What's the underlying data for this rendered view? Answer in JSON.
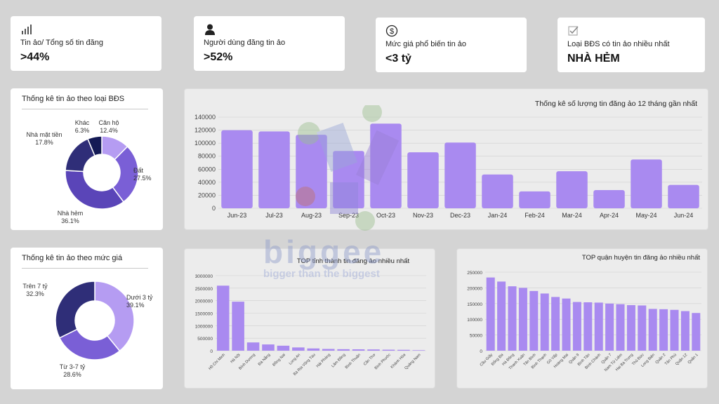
{
  "kpis": [
    {
      "label": "Tin ảo/ Tổng số tin đăng",
      "value": ">44%",
      "icon": "bar-chart-icon"
    },
    {
      "label": "Người dùng đăng tin ảo",
      "value": ">52%",
      "icon": "user-icon"
    },
    {
      "label": "Mức giá phổ biến tin ảo",
      "value": "<3 tỷ",
      "icon": "dollar-icon"
    },
    {
      "label": "Loại BĐS có tin ảo nhiều nhất",
      "value": "NHÀ HẺM",
      "icon": "checkbox-icon"
    }
  ],
  "colors": {
    "bar": "#a98af0",
    "donut": [
      "#b59cf2",
      "#7a5fd6",
      "#5a45b8",
      "#2f2e78",
      "#141a55"
    ]
  },
  "watermark": {
    "brand": "biggee",
    "tagline": "bigger than the biggest"
  },
  "chart_data": [
    {
      "type": "pie",
      "title": "Thống kê tin ảo theo loại BĐS",
      "labels": [
        "Căn hộ",
        "Đất",
        "Nhà hẻm",
        "Nhà mặt tiền",
        "Khác"
      ],
      "values": [
        12.4,
        27.5,
        36.1,
        17.8,
        6.3
      ],
      "value_labels": [
        "12.4%",
        "27.5%",
        "36.1%",
        "17.8%",
        "6.3%"
      ]
    },
    {
      "type": "pie",
      "title": "Thống kê tin ảo theo mức giá",
      "labels": [
        "Dưới 3 tỷ",
        "Từ 3-7 tỷ",
        "Trên 7 tỷ"
      ],
      "values": [
        39.1,
        28.6,
        32.3
      ],
      "value_labels": [
        "39.1%",
        "28.6%",
        "32.3%"
      ]
    },
    {
      "type": "bar",
      "title": "Thống kê số lượng tin đăng ảo 12 tháng gần nhất",
      "categories": [
        "Jun-23",
        "Jul-23",
        "Aug-23",
        "Sep-23",
        "Oct-23",
        "Nov-23",
        "Dec-23",
        "Jan-24",
        "Feb-24",
        "Mar-24",
        "Apr-24",
        "May-24",
        "Jun-24"
      ],
      "values": [
        120000,
        118000,
        113000,
        88000,
        130000,
        86000,
        101000,
        52000,
        26000,
        57000,
        28000,
        75000,
        36000
      ],
      "ylim": [
        0,
        140000
      ],
      "yticks": [
        0,
        20000,
        40000,
        60000,
        80000,
        100000,
        120000,
        140000
      ]
    },
    {
      "type": "bar",
      "title": "TOP tỉnh thành tin đăng ảo nhiều nhất",
      "categories": [
        "Hồ Chí Minh",
        "Hà Nội",
        "Bình Dương",
        "Đà Nẵng",
        "Đồng Nai",
        "Long An",
        "Bà Rịa Vũng Tàu",
        "Hải Phòng",
        "Lâm Đồng",
        "Bình Thuận",
        "Cần Thơ",
        "Bình Phước",
        "Khánh Hòa",
        "Quảng Nam"
      ],
      "values": [
        2600000,
        1960000,
        330000,
        250000,
        200000,
        130000,
        90000,
        70000,
        60000,
        55000,
        50000,
        40000,
        35000,
        20000
      ],
      "ylim": [
        0,
        3000000
      ],
      "yticks": [
        0,
        500000,
        1000000,
        1500000,
        2000000,
        2500000,
        3000000
      ]
    },
    {
      "type": "bar",
      "title": "TOP quận huyện tin đăng ảo nhiều nhất",
      "categories": [
        "Cầu Giấy",
        "Đống Đa",
        "Hà Đông",
        "Thanh Xuân",
        "Tân Bình",
        "Bình Thạnh",
        "Gò Vấp",
        "Hoàng Mai",
        "Quận 9",
        "Bình Tân",
        "Bình Chánh",
        "Quận 7",
        "Nam Từ Liêm",
        "Hai Bà Trưng",
        "Thủ Đức",
        "Long Biên",
        "Quận 2",
        "Tân Phú",
        "Quận 12",
        "Quận 1"
      ],
      "values": [
        233000,
        220000,
        205000,
        200000,
        190000,
        182000,
        171000,
        166000,
        155000,
        154000,
        153000,
        150000,
        148000,
        145000,
        144000,
        133000,
        132000,
        130000,
        126000,
        120000
      ],
      "ylim": [
        0,
        250000
      ],
      "yticks": [
        0,
        50000,
        100000,
        150000,
        200000,
        250000
      ]
    }
  ]
}
